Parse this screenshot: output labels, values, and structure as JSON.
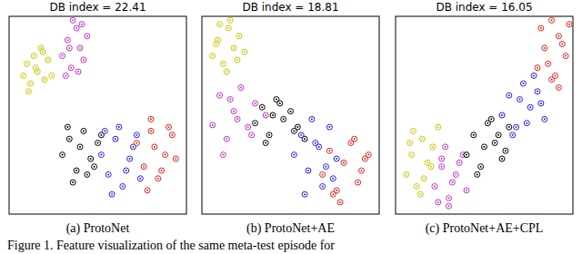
{
  "chart_data": [
    {
      "type": "scatter",
      "title": "DB index = 22.41",
      "subtitle": "(a) ProtoNet",
      "xlim": [
        0,
        100
      ],
      "ylim": [
        0,
        100
      ],
      "tick_labels": false,
      "marker": "circle",
      "series": [
        {
          "color": "#c8c400",
          "x": [
            8,
            10,
            12,
            14,
            16,
            18,
            20,
            22,
            11,
            15,
            19,
            24
          ],
          "values": [
            70,
            76,
            66,
            80,
            72,
            84,
            68,
            78,
            62,
            74,
            82,
            70
          ]
        },
        {
          "color": "#c030c0",
          "x": [
            30,
            33,
            35,
            38,
            40,
            42,
            36,
            32,
            44,
            39,
            34,
            41
          ],
          "values": [
            80,
            88,
            74,
            94,
            84,
            78,
            98,
            70,
            90,
            72,
            84,
            96
          ]
        },
        {
          "color": "#000000",
          "x": [
            30,
            34,
            38,
            42,
            46,
            50,
            36,
            44,
            40,
            48,
            33,
            52
          ],
          "values": [
            30,
            38,
            22,
            42,
            28,
            36,
            16,
            20,
            34,
            24,
            44,
            40
          ]
        },
        {
          "color": "#2020e0",
          "x": [
            52,
            56,
            60,
            64,
            68,
            72,
            58,
            62,
            66,
            70,
            54,
            74
          ],
          "values": [
            30,
            20,
            38,
            14,
            28,
            40,
            10,
            44,
            22,
            34,
            42,
            18
          ]
        },
        {
          "color": "#e02020",
          "x": [
            72,
            76,
            80,
            84,
            88,
            92,
            78,
            82,
            86,
            90,
            94,
            80
          ],
          "values": [
            36,
            24,
            42,
            18,
            30,
            40,
            12,
            34,
            22,
            44,
            28,
            48
          ]
        }
      ]
    },
    {
      "type": "scatter",
      "title": "DB index = 18.81",
      "subtitle": "(b) ProtoNet+AE",
      "xlim": [
        0,
        100
      ],
      "ylim": [
        0,
        100
      ],
      "tick_labels": false,
      "marker": "circle",
      "series": [
        {
          "color": "#c8c400",
          "x": [
            6,
            9,
            12,
            15,
            18,
            21,
            10,
            14,
            20,
            8,
            16,
            24
          ],
          "values": [
            80,
            88,
            76,
            94,
            84,
            90,
            96,
            72,
            78,
            86,
            98,
            82
          ]
        },
        {
          "color": "#c030c0",
          "x": [
            6,
            10,
            14,
            18,
            22,
            26,
            30,
            12,
            20,
            28,
            16,
            36
          ],
          "values": [
            45,
            60,
            38,
            52,
            64,
            44,
            56,
            30,
            48,
            40,
            58,
            50
          ]
        },
        {
          "color": "#000000",
          "x": [
            30,
            34,
            38,
            42,
            46,
            50,
            54,
            36,
            44,
            52,
            40,
            58
          ],
          "values": [
            46,
            54,
            40,
            58,
            48,
            52,
            44,
            36,
            56,
            42,
            50,
            38
          ]
        },
        {
          "color": "#2020e0",
          "x": [
            52,
            56,
            60,
            64,
            68,
            72,
            76,
            58,
            62,
            70,
            66,
            74
          ],
          "values": [
            30,
            40,
            22,
            36,
            14,
            44,
            28,
            10,
            48,
            24,
            34,
            18
          ]
        },
        {
          "color": "#e02020",
          "x": [
            68,
            72,
            76,
            80,
            84,
            88,
            92,
            78,
            86,
            90,
            74,
            94
          ],
          "values": [
            20,
            32,
            12,
            26,
            36,
            16,
            28,
            6,
            38,
            22,
            10,
            30
          ]
        }
      ]
    },
    {
      "type": "scatter",
      "title": "DB index = 16.05",
      "subtitle": "(c) ProtoNet+AE+CPL",
      "xlim": [
        0,
        100
      ],
      "ylim": [
        0,
        100
      ],
      "tick_labels": false,
      "marker": "circle",
      "series": [
        {
          "color": "#c8c400",
          "x": [
            6,
            9,
            12,
            15,
            18,
            21,
            10,
            14,
            20,
            8,
            16,
            24
          ],
          "values": [
            20,
            30,
            14,
            38,
            26,
            34,
            42,
            10,
            24,
            36,
            18,
            44
          ]
        },
        {
          "color": "#c030c0",
          "x": [
            22,
            26,
            30,
            34,
            38,
            28,
            24,
            32,
            36,
            40,
            30,
            26
          ],
          "values": [
            14,
            24,
            8,
            20,
            30,
            34,
            6,
            16,
            26,
            12,
            4,
            28
          ]
        },
        {
          "color": "#000000",
          "x": [
            40,
            44,
            48,
            52,
            56,
            60,
            64,
            46,
            50,
            58,
            54,
            62
          ],
          "values": [
            30,
            40,
            24,
            46,
            36,
            28,
            44,
            20,
            34,
            40,
            48,
            32
          ]
        },
        {
          "color": "#2020e0",
          "x": [
            60,
            64,
            68,
            72,
            76,
            80,
            84,
            66,
            70,
            78,
            74,
            82
          ],
          "values": [
            50,
            60,
            44,
            66,
            54,
            62,
            48,
            40,
            58,
            70,
            46,
            56
          ]
        },
        {
          "color": "#e02020",
          "x": [
            80,
            84,
            88,
            92,
            96,
            82,
            86,
            90,
            94,
            98,
            88,
            92
          ],
          "values": [
            74,
            84,
            68,
            90,
            80,
            94,
            76,
            70,
            86,
            96,
            98,
            64
          ]
        }
      ]
    }
  ],
  "caption": "Figure 1. Feature visualization of the same meta-test episode for"
}
